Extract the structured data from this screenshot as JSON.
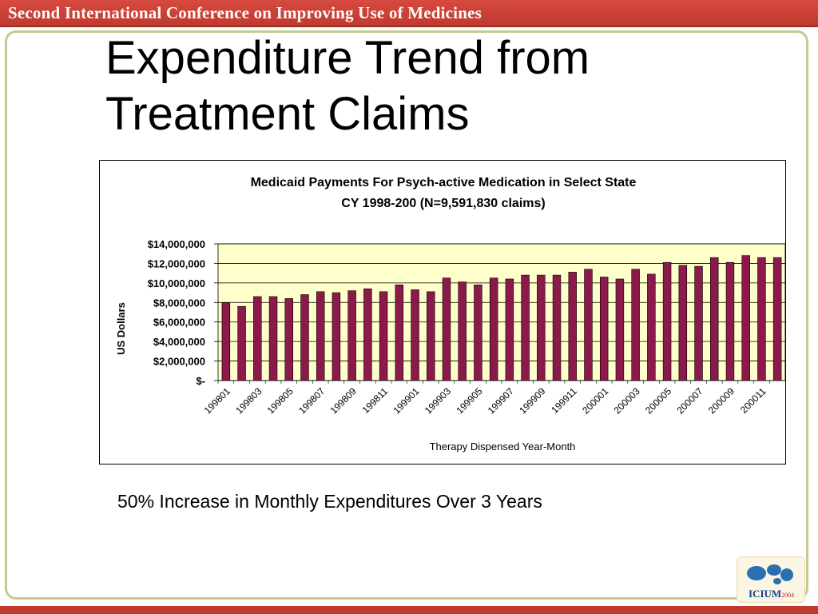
{
  "banner": {
    "text": "Second International Conference on Improving Use of Medicines"
  },
  "slide": {
    "title_lines": [
      "Expenditure Trend from",
      "Treatment Claims"
    ],
    "caption": "50% Increase in Monthly Expenditures Over 3 Years"
  },
  "logo": {
    "text": "ICIUM",
    "year": "2004"
  },
  "colors": {
    "banner": "#c0392f",
    "bar_fill": "#8b1a4a",
    "plot_background": "#ffffcc",
    "frame": "#c9c78f"
  },
  "chart_data": {
    "type": "bar",
    "title": "Medicaid Payments For Psych-active Medication in Select State",
    "subtitle": "CY 1998-200 (N=9,591,830 claims)",
    "xlabel": "Therapy Dispensed Year-Month",
    "ylabel": "US Dollars",
    "ylim": [
      0,
      14000000
    ],
    "yticks": [
      0,
      2000000,
      4000000,
      6000000,
      8000000,
      10000000,
      12000000,
      14000000
    ],
    "ytick_labels": [
      "$-",
      "$2,000,000",
      "$4,000,000",
      "$6,000,000",
      "$8,000,000",
      "$10,000,000",
      "$12,000,000",
      "$14,000,000"
    ],
    "grid": true,
    "legend": false,
    "categories": [
      "199801",
      "199802",
      "199803",
      "199804",
      "199805",
      "199806",
      "199807",
      "199808",
      "199809",
      "199810",
      "199811",
      "199812",
      "199901",
      "199902",
      "199903",
      "199904",
      "199905",
      "199906",
      "199907",
      "199908",
      "199909",
      "199910",
      "199911",
      "199912",
      "200001",
      "200002",
      "200003",
      "200004",
      "200005",
      "200006",
      "200007",
      "200008",
      "200009",
      "200010",
      "200011",
      "200012"
    ],
    "xtick_labels": [
      "199801",
      "",
      "199803",
      "",
      "199805",
      "",
      "199807",
      "",
      "199809",
      "",
      "199811",
      "",
      "199901",
      "",
      "199903",
      "",
      "199905",
      "",
      "199907",
      "",
      "199909",
      "",
      "199911",
      "",
      "200001",
      "",
      "200003",
      "",
      "200005",
      "",
      "200007",
      "",
      "200009",
      "",
      "200011",
      ""
    ],
    "values": [
      8000000,
      7600000,
      8600000,
      8600000,
      8400000,
      8800000,
      9100000,
      9000000,
      9200000,
      9400000,
      9100000,
      9800000,
      9300000,
      9100000,
      10500000,
      10100000,
      9800000,
      10500000,
      10400000,
      10800000,
      10800000,
      10800000,
      11100000,
      11400000,
      10600000,
      10400000,
      11400000,
      10900000,
      12100000,
      11800000,
      11700000,
      12600000,
      12100000,
      12800000,
      12600000,
      12600000
    ]
  }
}
